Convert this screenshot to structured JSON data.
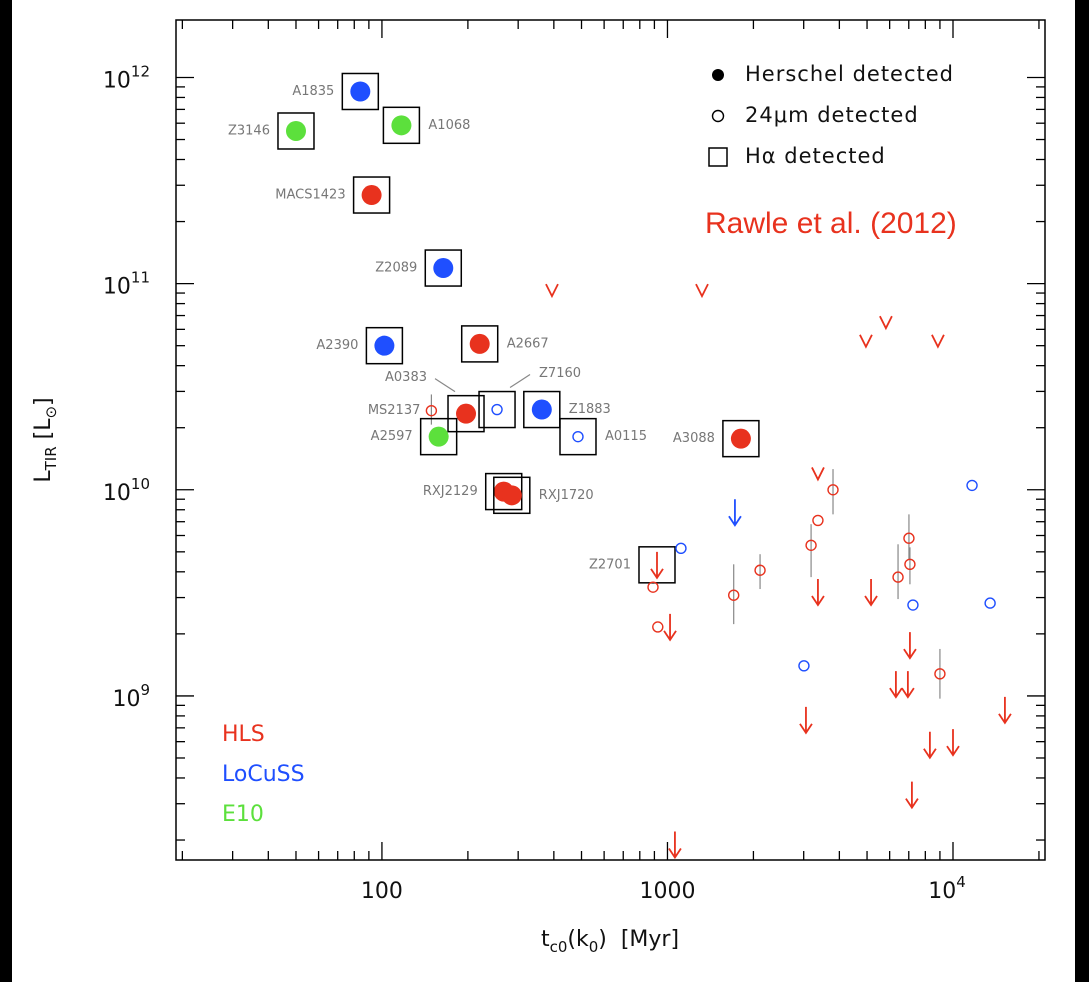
{
  "chart_data": {
    "type": "scatter",
    "xlabel": [
      "t",
      "c0",
      "(k",
      "0",
      ")  [Myr]"
    ],
    "ylabel": [
      "L",
      "TIR",
      " [L",
      "⊙",
      "]"
    ],
    "log_x": true,
    "log_y": true,
    "xlim": [
      19,
      21000
    ],
    "ylim": [
      160000000.0,
      1900000000000.0
    ],
    "xticks": [
      100,
      1000,
      {
        "value": 10000,
        "label": "10",
        "sup": "4"
      }
    ],
    "yticks": [
      {
        "value": 1000000000.0,
        "label": "10",
        "sup": "9"
      },
      {
        "value": 10000000000.0,
        "label": "10",
        "sup": "10"
      },
      {
        "value": 100000000000.0,
        "label": "10",
        "sup": "11"
      },
      {
        "value": 1000000000000.0,
        "label": "10",
        "sup": "12"
      }
    ],
    "xminor": [
      20,
      30,
      40,
      50,
      60,
      70,
      80,
      90,
      200,
      300,
      400,
      500,
      600,
      700,
      800,
      900,
      2000,
      3000,
      4000,
      5000,
      6000,
      7000,
      8000,
      9000,
      20000
    ],
    "yminor": [
      200000000.0,
      300000000.0,
      400000000.0,
      500000000.0,
      600000000.0,
      700000000.0,
      800000000.0,
      900000000.0,
      2000000000.0,
      3000000000.0,
      4000000000.0,
      5000000000.0,
      6000000000.0,
      7000000000.0,
      8000000000.0,
      9000000000.0,
      20000000000.0,
      30000000000.0,
      40000000000.0,
      50000000000.0,
      60000000000.0,
      70000000000.0,
      80000000000.0,
      90000000000.0,
      200000000000.0,
      300000000000.0,
      400000000000.0,
      500000000000.0,
      600000000000.0,
      700000000000.0,
      800000000000.0,
      900000000000.0
    ],
    "annotation": "Rawle et al. (2012)",
    "marker_legend": [
      {
        "marker": "filled",
        "label": "Herschel detected"
      },
      {
        "marker": "open",
        "label": "24μm detected"
      },
      {
        "marker": "box",
        "label": "Hα detected"
      }
    ],
    "series": [
      {
        "name": "HLS",
        "color": "#e8321e",
        "x": [
          92,
          220,
          197,
          149,
          1808,
          267,
          285,
          919,
          890,
          925,
          1706,
          2110,
          3184,
          3365,
          3800,
          6420,
          7010,
          7066,
          9000,
          394,
          1321,
          4955,
          5821,
          8855,
          3365,
          1021,
          3365,
          5164,
          7066,
          6310,
          6950,
          3055,
          8300,
          10000,
          15200,
          7180,
          1062
        ],
        "values": [
          269000000000.0,
          51000000000.0,
          23400000000.0,
          24200000000.0,
          17700000000.0,
          9800000000.0,
          9400000000.0,
          5000000000.0,
          3370000000.0,
          2160000000.0,
          3080000000.0,
          4070000000.0,
          5380000000.0,
          7100000000.0,
          10000000000.0,
          3770000000.0,
          5820000000.0,
          4350000000.0,
          1280000000.0,
          93000000000.0,
          93000000000.0,
          52800000000.0,
          65000000000.0,
          52800000000.0,
          12000000000.0,
          2500000000.0,
          3690000000.0,
          3690000000.0,
          2040000000.0,
          1320000000.0,
          1320000000.0,
          885000000.0,
          670000000.0,
          690000000.0,
          990000000.0,
          384000000.0,
          220000000.0
        ],
        "markers": [
          "filled",
          "filled",
          "filled",
          "open",
          "filled",
          "filled",
          "filled",
          "limit",
          "open",
          "open",
          "open",
          "open",
          "open",
          "open",
          "open",
          "open",
          "open",
          "open",
          "open",
          "chevron",
          "chevron",
          "chevron",
          "chevron",
          "chevron",
          "chevron",
          "limit",
          "limit",
          "limit",
          "limit",
          "limit",
          "limit",
          "limit",
          "limit",
          "limit",
          "limit",
          "limit",
          "limit"
        ],
        "boxed": [
          true,
          true,
          true,
          false,
          true,
          true,
          true,
          true,
          false,
          false,
          false,
          false,
          false,
          false,
          false,
          false,
          false,
          false,
          false,
          false,
          false,
          false,
          false,
          false,
          false,
          false,
          false,
          false,
          false,
          false,
          false,
          false,
          false,
          false,
          false,
          false,
          false
        ],
        "labels": [
          "MACS1423",
          "A2667",
          "A0383",
          "MS2137",
          "A3088",
          "RXJ2129",
          "RXJ1720",
          "Z2701",
          null,
          null,
          null,
          null,
          null,
          null,
          null,
          null,
          null,
          null,
          null,
          null,
          null,
          null,
          null,
          null,
          null,
          null,
          null,
          null,
          null,
          null,
          null,
          null,
          null,
          null,
          null,
          null,
          null
        ],
        "yerr": [
          null,
          null,
          null,
          [
            20700000000.0,
            29000000000.0
          ],
          null,
          null,
          null,
          null,
          null,
          null,
          [
            2230000000.0,
            4350000000.0
          ],
          [
            3300000000.0,
            4870000000.0
          ],
          [
            3770000000.0,
            6810000000.0
          ],
          null,
          [
            7600000000.0,
            12600000000.0
          ],
          [
            2950000000.0,
            5440000000.0
          ],
          [
            4600000000.0,
            7600000000.0
          ],
          [
            3480000000.0,
            5260000000.0
          ],
          [
            970000000.0,
            1690000000.0
          ],
          null,
          null,
          null,
          null,
          null,
          null,
          null,
          null,
          null,
          null,
          null,
          null,
          null,
          null,
          null,
          null,
          null,
          null
        ]
      },
      {
        "name": "LoCuSS",
        "color": "#1f4fff",
        "x": [
          84,
          164,
          102,
          363,
          253,
          486,
          1115,
          3006,
          7240,
          11660,
          13490,
          1723
        ],
        "values": [
          855000000000.0,
          119000000000.0,
          50000000000.0,
          24500000000.0,
          24500000000.0,
          18100000000.0,
          5200000000.0,
          1400000000.0,
          2760000000.0,
          10500000000.0,
          2820000000.0,
          9000000000.0
        ],
        "markers": [
          "filled",
          "filled",
          "filled",
          "filled",
          "open",
          "open",
          "open",
          "open",
          "open",
          "open",
          "open",
          "limit"
        ],
        "boxed": [
          true,
          true,
          true,
          true,
          true,
          true,
          false,
          false,
          false,
          false,
          false,
          false
        ],
        "labels": [
          "A1835",
          "Z2089",
          "A2390",
          "Z1883",
          "Z7160",
          "A0115",
          null,
          null,
          null,
          null,
          null,
          null
        ],
        "yerr": [
          null,
          null,
          null,
          null,
          null,
          null,
          null,
          null,
          null,
          null,
          null,
          null
        ]
      },
      {
        "name": "E10",
        "color": "#5ce03c",
        "x": [
          50,
          117,
          158
        ],
        "values": [
          550000000000.0,
          586000000000.0,
          18100000000.0
        ],
        "markers": [
          "filled",
          "filled",
          "filled"
        ],
        "boxed": [
          true,
          true,
          true
        ],
        "labels": [
          "Z3146",
          "A1068",
          "A2597"
        ],
        "yerr": [
          null,
          null,
          null
        ]
      }
    ]
  }
}
